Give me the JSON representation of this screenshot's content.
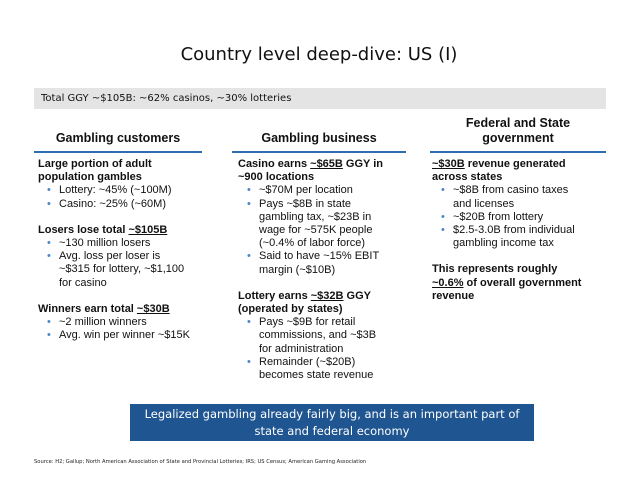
{
  "title": "Country level deep-dive: US (I)",
  "ggy_bar": "Total GGY ~$105B:  ~62% casinos, ~30% lotteries",
  "columns": {
    "customers": {
      "heading": "Gambling customers",
      "block1_heading_l1": "Large portion of adult",
      "block1_heading_l2": "population gambles",
      "block1_items": [
        "Lottery: ~45% (~100M)",
        "Casino: ~25% (~60M)"
      ],
      "block2_heading_prefix": "Losers lose total ",
      "block2_heading_value": "~$105B",
      "block2_item1": "~130 million losers",
      "block2_item2_l1": "Avg. loss per loser is",
      "block2_item2_l2": "~$315 for lottery, ~$1,100",
      "block2_item2_l3": "for casino",
      "block3_heading_prefix": "Winners earn total ",
      "block3_heading_value": "~$30B",
      "block3_items": [
        "~2 million winners",
        "Avg. win per winner ~$15K"
      ]
    },
    "business": {
      "heading": "Gambling business",
      "block1_heading_prefix": "Casino earns ",
      "block1_heading_value": "~$65B",
      "block1_heading_suffix": " GGY in",
      "block1_heading_l2": "~900 locations",
      "b1_item1": "~$70M per location",
      "b1_item2_l1": "Pays ~$8B in state",
      "b1_item2_l2": "gambling tax, ~$23B in",
      "b1_item2_l3": "wage for ~575K people",
      "b1_item2_l4": "(~0.4% of labor force)",
      "b1_item3_l1": "Said to have ~15% EBIT",
      "b1_item3_l2": "margin (~$10B)",
      "block2_heading_prefix": "Lottery earns ",
      "block2_heading_value": "~$32B",
      "block2_heading_suffix": " GGY",
      "block2_heading_l2": "(operated by states)",
      "b2_item1_l1": "Pays ~$9B for retail",
      "b2_item1_l2": "commissions, and ~$3B",
      "b2_item1_l3": "for administration",
      "b2_item2_l1": "Remainder (~$20B)",
      "b2_item2_l2": "becomes state revenue"
    },
    "government": {
      "heading_l1": "Federal and State",
      "heading_l2": "government",
      "block1_heading_value": "~$30B",
      "block1_heading_suffix": " revenue generated",
      "block1_heading_l2": "across states",
      "g_item1_l1": "~$8B from casino taxes",
      "g_item1_l2": "and licenses",
      "g_item2": "~$20B from lottery",
      "g_item3_l1": "$2.5-3.0B from individual",
      "g_item3_l2": "gambling income tax",
      "block2_l1": "This represents roughly",
      "block2_value": "~0.6%",
      "block2_suffix": " of overall government",
      "block2_l3": "revenue"
    }
  },
  "conclusion_l1": "Legalized gambling already fairly big, and is an important part of",
  "conclusion_l2": "state and federal economy",
  "source": "Source: H2; Gallup; North American Association of State and Provincial Lotteries; IRS; US Census; American Gaming Association",
  "colors": {
    "accent_blue": "#2e6db0",
    "box_blue": "#1f5590",
    "bullet_blue": "#4a86c8",
    "bar_gray": "#e4e4e4"
  }
}
